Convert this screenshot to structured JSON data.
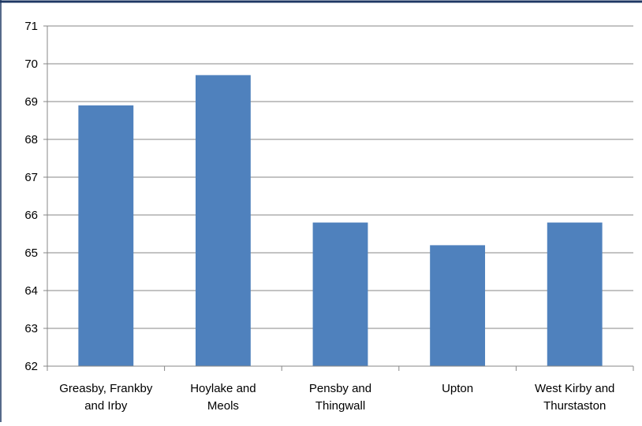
{
  "chart_data": {
    "type": "bar",
    "categories": [
      [
        "Greasby, Frankby",
        "and Irby"
      ],
      [
        "Hoylake and",
        "Meols"
      ],
      [
        "Pensby and",
        "Thingwall"
      ],
      [
        "Upton"
      ],
      [
        "West Kirby and",
        "Thurstaston"
      ]
    ],
    "values": [
      68.9,
      69.7,
      65.8,
      65.2,
      65.8
    ],
    "ylim": [
      62,
      71
    ],
    "yticks": [
      "62",
      "63",
      "64",
      "65",
      "66",
      "67",
      "68",
      "69",
      "70",
      "71"
    ],
    "grid": true,
    "bar_color": "#4f81bd",
    "title": "",
    "xlabel": "",
    "ylabel": ""
  },
  "colors": {
    "top_border": "#1f3864",
    "gridline": "#878787",
    "axis": "#878787"
  }
}
